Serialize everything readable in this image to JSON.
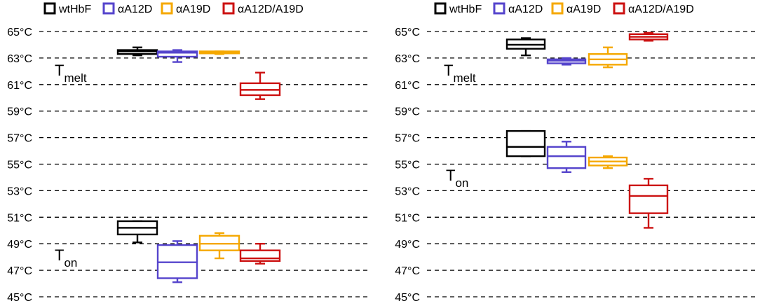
{
  "colors": {
    "wtHbF": "#000000",
    "aA12D": "#5544cc",
    "aA19D": "#f5a800",
    "aA12DA19D": "#cc1111",
    "grid": "#000000"
  },
  "chart_data": [
    {
      "type": "box",
      "panel": "left",
      "ylim": [
        45,
        65
      ],
      "y_ticks": [
        45,
        47,
        49,
        51,
        53,
        55,
        57,
        59,
        61,
        63,
        65
      ],
      "y_tick_labels": [
        "45°C",
        "47°C",
        "49°C",
        "51°C",
        "53°C",
        "55°C",
        "57°C",
        "59°C",
        "61°C",
        "63°C",
        "65°C"
      ],
      "grid": "horizontal-dashed",
      "legend": {
        "placement": "top",
        "entries": [
          "wtHbF",
          "αA12D",
          "αA19D",
          "αA12D/A19D"
        ]
      },
      "annotations": {
        "melt": {
          "main": "T",
          "sub": "melt"
        },
        "on": {
          "main": "T",
          "sub": "on"
        }
      },
      "categories": [
        "wtHbF",
        "αA12D",
        "αA19D",
        "αA12D/A19D"
      ],
      "groups": [
        {
          "label": "Tmelt",
          "boxes": [
            {
              "series": "wtHbF",
              "min": 63.2,
              "q1": 63.3,
              "median": 63.5,
              "q3": 63.6,
              "max": 63.8
            },
            {
              "series": "αA12D",
              "min": 62.7,
              "q1": 63.1,
              "median": 63.4,
              "q3": 63.5,
              "max": 63.6
            },
            {
              "series": "αA19D",
              "min": 63.3,
              "q1": 63.35,
              "median": 63.4,
              "q3": 63.5,
              "max": 63.5
            },
            {
              "series": "αA12D/A19D",
              "min": 59.9,
              "q1": 60.2,
              "median": 60.6,
              "q3": 61.1,
              "max": 61.9
            }
          ]
        },
        {
          "label": "Ton",
          "boxes": [
            {
              "series": "wtHbF",
              "min": 49.1,
              "q1": 49.7,
              "median": 50.2,
              "q3": 50.7,
              "max": 50.7
            },
            {
              "series": "αA12D",
              "min": 46.1,
              "q1": 46.4,
              "median": 47.6,
              "q3": 48.9,
              "max": 49.2
            },
            {
              "series": "αA19D",
              "min": 47.9,
              "q1": 48.5,
              "median": 49.0,
              "q3": 49.6,
              "max": 49.8
            },
            {
              "series": "αA12D/A19D",
              "min": 47.5,
              "q1": 47.7,
              "median": 47.9,
              "q3": 48.5,
              "max": 49.0
            }
          ]
        }
      ]
    },
    {
      "type": "box",
      "panel": "right",
      "ylim": [
        45,
        65
      ],
      "y_ticks": [
        45,
        47,
        49,
        51,
        53,
        55,
        57,
        59,
        61,
        63,
        65
      ],
      "y_tick_labels": [
        "45°C",
        "47°C",
        "49°C",
        "51°C",
        "53°C",
        "55°C",
        "57°C",
        "59°C",
        "61°C",
        "63°C",
        "65°C"
      ],
      "grid": "horizontal-dashed",
      "legend": {
        "placement": "top",
        "entries": [
          "wtHbF",
          "αA12D",
          "αA19D",
          "αA12D/A19D"
        ]
      },
      "annotations": {
        "melt": {
          "main": "T",
          "sub": "melt"
        },
        "on": {
          "main": "T",
          "sub": "on"
        }
      },
      "categories": [
        "wtHbF",
        "αA12D",
        "αA19D",
        "αA12D/A19D"
      ],
      "groups": [
        {
          "label": "Tmelt",
          "boxes": [
            {
              "series": "wtHbF",
              "min": 63.2,
              "q1": 63.7,
              "median": 64.0,
              "q3": 64.4,
              "max": 64.5
            },
            {
              "series": "αA12D",
              "min": 62.5,
              "q1": 62.6,
              "median": 62.8,
              "q3": 62.9,
              "max": 63.0
            },
            {
              "series": "αA19D",
              "min": 62.3,
              "q1": 62.5,
              "median": 62.9,
              "q3": 63.3,
              "max": 63.8
            },
            {
              "series": "αA12D/A19D",
              "min": 64.3,
              "q1": 64.4,
              "median": 64.6,
              "q3": 64.8,
              "max": 64.9
            }
          ]
        },
        {
          "label": "Ton",
          "boxes": [
            {
              "series": "wtHbF",
              "min": 55.6,
              "q1": 55.6,
              "median": 56.3,
              "q3": 57.5,
              "max": 57.5
            },
            {
              "series": "αA12D",
              "min": 54.4,
              "q1": 54.7,
              "median": 55.6,
              "q3": 56.3,
              "max": 56.7
            },
            {
              "series": "αA19D",
              "min": 54.7,
              "q1": 54.9,
              "median": 55.2,
              "q3": 55.5,
              "max": 55.6
            },
            {
              "series": "αA12D/A19D",
              "min": 50.2,
              "q1": 51.3,
              "median": 52.6,
              "q3": 53.4,
              "max": 53.9
            }
          ]
        }
      ]
    }
  ]
}
